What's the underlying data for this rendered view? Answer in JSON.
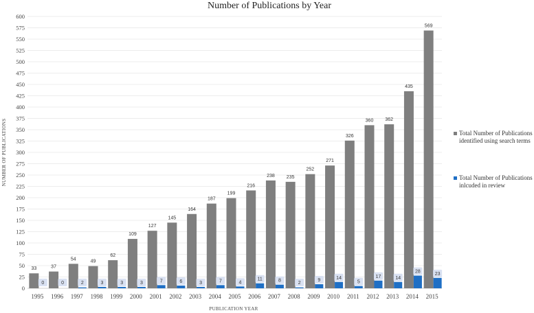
{
  "chart_data": {
    "type": "bar",
    "title": "Number of Publications by Year",
    "xlabel": "PUBLICATION YEAR",
    "ylabel": "NUMBER OF PUBLICATIONS",
    "ylim": [
      0,
      600
    ],
    "ytick_step": 25,
    "grid": true,
    "legend_position": "right",
    "categories": [
      "1995",
      "1996",
      "1997",
      "1998",
      "1999",
      "2000",
      "2001",
      "2002",
      "2003",
      "2004",
      "2005",
      "2006",
      "2007",
      "2008",
      "2009",
      "2010",
      "2011",
      "2012",
      "2013",
      "2014",
      "2015"
    ],
    "series": [
      {
        "name": "Total Number of Publications identified using search terms",
        "legend_lines": [
          "Total Number of Publications",
          "identified using search terms"
        ],
        "color": "#7f7f7f",
        "values": [
          33,
          37,
          54,
          49,
          62,
          109,
          127,
          145,
          164,
          187,
          199,
          216,
          238,
          235,
          252,
          271,
          326,
          360,
          362,
          435,
          569
        ]
      },
      {
        "name": "Total Number of Publications inlcuded in review",
        "legend_lines": [
          "Total Number of Publications",
          "inlcuded in review"
        ],
        "color": "#1f6fc5",
        "values": [
          0,
          0,
          2,
          3,
          3,
          3,
          7,
          6,
          3,
          7,
          4,
          11,
          8,
          2,
          9,
          14,
          5,
          17,
          14,
          28,
          23
        ]
      }
    ],
    "label_box_color": "#d9e1f2"
  }
}
